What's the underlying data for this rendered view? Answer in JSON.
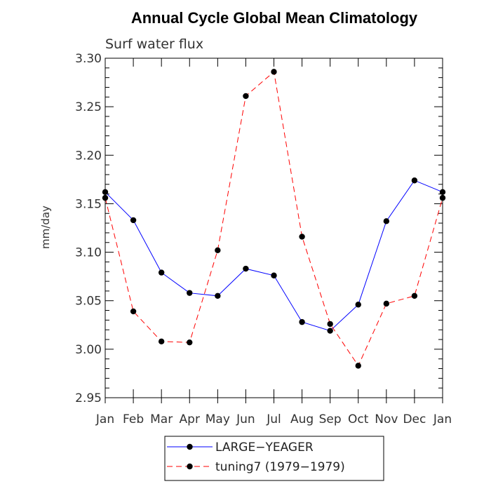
{
  "chart_data": {
    "type": "line",
    "title": "Annual Cycle Global Mean Climatology",
    "subtitle": "Surf water flux",
    "xlabel": "",
    "ylabel": "mm/day",
    "categories": [
      "Jan",
      "Feb",
      "Mar",
      "Apr",
      "May",
      "Jun",
      "Jul",
      "Aug",
      "Sep",
      "Oct",
      "Nov",
      "Dec",
      "Jan"
    ],
    "ylim": [
      2.95,
      3.3
    ],
    "yticks": [
      2.95,
      3.0,
      3.05,
      3.1,
      3.15,
      3.2,
      3.25,
      3.3
    ],
    "ytick_labels": [
      "2.95",
      "3.00",
      "3.05",
      "3.10",
      "3.15",
      "3.20",
      "3.25",
      "3.30"
    ],
    "series": [
      {
        "name": "LARGE−YEAGER",
        "color": "#0000ff",
        "style": "solid",
        "values": [
          3.162,
          3.133,
          3.079,
          3.058,
          3.055,
          3.083,
          3.076,
          3.028,
          3.019,
          3.046,
          3.132,
          3.174,
          3.162
        ]
      },
      {
        "name": "tuning7 (1979−1979)",
        "color": "#ff0000",
        "style": "dashed",
        "values": [
          3.156,
          3.039,
          3.008,
          3.007,
          3.102,
          3.261,
          3.286,
          3.116,
          3.026,
          2.983,
          3.047,
          3.055,
          3.156
        ]
      }
    ],
    "legend_position": "bottom-center",
    "grid": false
  }
}
